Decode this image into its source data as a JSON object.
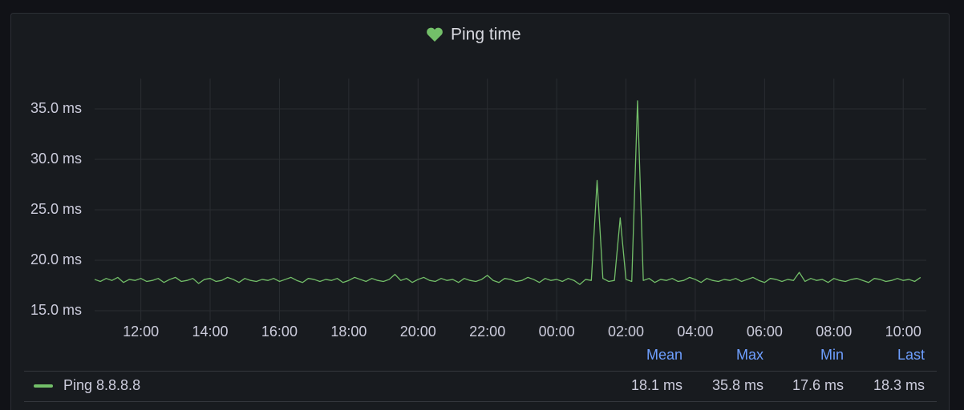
{
  "chart_data": {
    "type": "line",
    "title": "Ping time",
    "x": [
      "10:40",
      "10:50",
      "11:00",
      "11:10",
      "11:20",
      "11:30",
      "11:40",
      "11:50",
      "12:00",
      "12:10",
      "12:20",
      "12:30",
      "12:40",
      "12:50",
      "13:00",
      "13:10",
      "13:20",
      "13:30",
      "13:40",
      "13:50",
      "14:00",
      "14:10",
      "14:20",
      "14:30",
      "14:40",
      "14:50",
      "15:00",
      "15:10",
      "15:20",
      "15:30",
      "15:40",
      "15:50",
      "16:00",
      "16:10",
      "16:20",
      "16:30",
      "16:40",
      "16:50",
      "17:00",
      "17:10",
      "17:20",
      "17:30",
      "17:40",
      "17:50",
      "18:00",
      "18:10",
      "18:20",
      "18:30",
      "18:40",
      "18:50",
      "19:00",
      "19:10",
      "19:20",
      "19:30",
      "19:40",
      "19:50",
      "20:00",
      "20:10",
      "20:20",
      "20:30",
      "20:40",
      "20:50",
      "21:00",
      "21:10",
      "21:20",
      "21:30",
      "21:40",
      "21:50",
      "22:00",
      "22:10",
      "22:20",
      "22:30",
      "22:40",
      "22:50",
      "23:00",
      "23:10",
      "23:20",
      "23:30",
      "23:40",
      "23:50",
      "00:00",
      "00:10",
      "00:20",
      "00:30",
      "00:40",
      "00:50",
      "01:00",
      "01:10",
      "01:20",
      "01:30",
      "01:40",
      "01:50",
      "02:00",
      "02:10",
      "02:20",
      "02:30",
      "02:40",
      "02:50",
      "03:00",
      "03:10",
      "03:20",
      "03:30",
      "03:40",
      "03:50",
      "04:00",
      "04:10",
      "04:20",
      "04:30",
      "04:40",
      "04:50",
      "05:00",
      "05:10",
      "05:20",
      "05:30",
      "05:40",
      "05:50",
      "06:00",
      "06:10",
      "06:20",
      "06:30",
      "06:40",
      "06:50",
      "07:00",
      "07:10",
      "07:20",
      "07:30",
      "07:40",
      "07:50",
      "08:00",
      "08:10",
      "08:20",
      "08:30",
      "08:40",
      "08:50",
      "09:00",
      "09:10",
      "09:20",
      "09:30",
      "09:40",
      "09:50",
      "10:00",
      "10:10",
      "10:20",
      "10:30"
    ],
    "series": [
      {
        "name": "Ping 8.8.8.8",
        "color": "#73bf69",
        "values": [
          18.1,
          17.9,
          18.2,
          18.0,
          18.3,
          17.8,
          18.1,
          18.0,
          18.2,
          17.9,
          18.0,
          18.2,
          17.8,
          18.1,
          18.3,
          17.9,
          18.0,
          18.2,
          17.7,
          18.1,
          18.2,
          17.9,
          18.0,
          18.3,
          18.1,
          17.8,
          18.2,
          18.0,
          17.9,
          18.1,
          18.0,
          18.2,
          17.9,
          18.1,
          18.3,
          18.0,
          17.8,
          18.2,
          18.1,
          17.9,
          18.1,
          18.0,
          18.2,
          17.8,
          18.0,
          18.3,
          18.1,
          17.9,
          18.2,
          18.0,
          17.9,
          18.1,
          18.6,
          18.0,
          18.2,
          17.8,
          18.1,
          18.3,
          18.0,
          17.9,
          18.2,
          18.0,
          18.1,
          17.8,
          18.2,
          18.0,
          17.9,
          18.1,
          18.5,
          18.0,
          17.8,
          18.2,
          18.1,
          17.9,
          18.0,
          18.3,
          18.1,
          17.8,
          18.2,
          18.0,
          18.1,
          17.9,
          18.2,
          18.0,
          17.6,
          18.1,
          18.0,
          27.9,
          18.2,
          17.9,
          18.0,
          24.2,
          18.1,
          17.9,
          35.8,
          18.0,
          18.2,
          17.8,
          18.1,
          18.0,
          18.2,
          17.9,
          18.0,
          18.3,
          18.1,
          17.8,
          18.2,
          18.0,
          17.9,
          18.1,
          18.0,
          18.2,
          17.9,
          18.1,
          18.3,
          18.0,
          17.8,
          18.2,
          18.1,
          17.9,
          18.1,
          18.0,
          18.8,
          17.9,
          18.2,
          18.0,
          18.1,
          17.8,
          18.2,
          18.0,
          17.9,
          18.1,
          18.2,
          18.0,
          17.8,
          18.2,
          18.1,
          17.9,
          18.0,
          18.2,
          18.0,
          18.1,
          17.9,
          18.3
        ]
      }
    ],
    "xlim": [
      "10:40",
      "10:40"
    ],
    "xticks": [
      "12:00",
      "14:00",
      "16:00",
      "18:00",
      "20:00",
      "22:00",
      "00:00",
      "02:00",
      "04:00",
      "06:00",
      "08:00",
      "10:00"
    ],
    "ylim": [
      14,
      38
    ],
    "yticks": [
      {
        "value": 15,
        "label": "15.0 ms"
      },
      {
        "value": 20,
        "label": "20.0 ms"
      },
      {
        "value": 25,
        "label": "25.0 ms"
      },
      {
        "value": 30,
        "label": "30.0 ms"
      },
      {
        "value": 35,
        "label": "35.0 ms"
      }
    ],
    "grid": true,
    "legend": {
      "columns": [
        "Mean",
        "Max",
        "Min",
        "Last"
      ],
      "values": [
        18.1,
        35.8,
        17.6,
        18.3
      ],
      "value_labels": [
        "18.1 ms",
        "35.8 ms",
        "17.6 ms",
        "18.3 ms"
      ]
    }
  }
}
